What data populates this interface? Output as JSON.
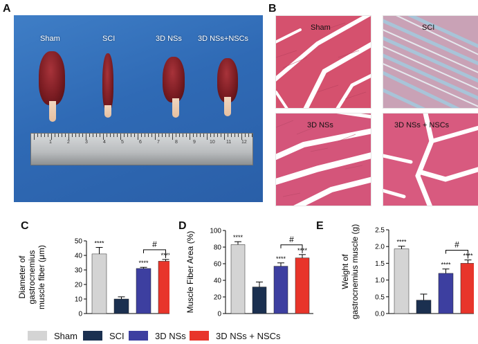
{
  "panels": {
    "a": "A",
    "b": "B",
    "c": "C",
    "d": "D",
    "e": "E"
  },
  "photo_labels": [
    "Sham",
    "SCI",
    "3D NSs",
    "3D NSs+NSCs"
  ],
  "ruler_numbers": [
    "1",
    "2",
    "3",
    "4",
    "5",
    "6",
    "7",
    "8",
    "9",
    "10",
    "11",
    "12"
  ],
  "histology_labels": [
    "Sham",
    "SCI",
    "3D NSs",
    "3D NSs + NSCs"
  ],
  "colors": {
    "sham": "#d4d4d4",
    "sci": "#1b3050",
    "nss": "#3d3fa0",
    "nsc": "#e8352b"
  },
  "legend": [
    "Sham",
    "SCI",
    "3D NSs",
    "3D NSs + NSCs"
  ],
  "chart_data": [
    {
      "type": "bar",
      "categories": [
        "Sham",
        "SCI",
        "3D NSs",
        "3D NSs + NSCs"
      ],
      "values": [
        41,
        10,
        31,
        36
      ],
      "errors": [
        4.5,
        1.5,
        0.8,
        1.2
      ],
      "ylim": [
        0,
        50
      ],
      "yticks": [
        "0",
        "10",
        "20",
        "30",
        "40",
        "50"
      ],
      "ylabel": [
        "Diameter of",
        "gastrocnemius",
        "muscle fiber (μm)"
      ],
      "annotations": [
        "****",
        "",
        "****",
        "****"
      ],
      "bracket_label": "#"
    },
    {
      "type": "bar",
      "categories": [
        "Sham",
        "SCI",
        "3D NSs",
        "3D NSs + NSCs"
      ],
      "values": [
        83,
        32,
        57,
        67
      ],
      "errors": [
        3.5,
        6,
        4,
        4
      ],
      "ylim": [
        0,
        100
      ],
      "yticks": [
        "0",
        "20",
        "40",
        "60",
        "80",
        "100"
      ],
      "ylabel": [
        "Muscle Fiber Area (%)"
      ],
      "annotations": [
        "****",
        "",
        "****",
        "****"
      ],
      "bracket_label": "#"
    },
    {
      "type": "bar",
      "categories": [
        "Sham",
        "SCI",
        "3D NSs",
        "3D NSs + NSCs"
      ],
      "values": [
        1.93,
        0.4,
        1.2,
        1.5
      ],
      "errors": [
        0.08,
        0.18,
        0.13,
        0.1
      ],
      "ylim": [
        0,
        2.5
      ],
      "yticks": [
        "0.0",
        "0.5",
        "1.0",
        "1.5",
        "2.0",
        "2.5"
      ],
      "ylabel": [
        "Weight of",
        "gastrocnemius muscle (g)"
      ],
      "annotations": [
        "****",
        "",
        "****",
        "****"
      ],
      "bracket_label": "#"
    }
  ]
}
